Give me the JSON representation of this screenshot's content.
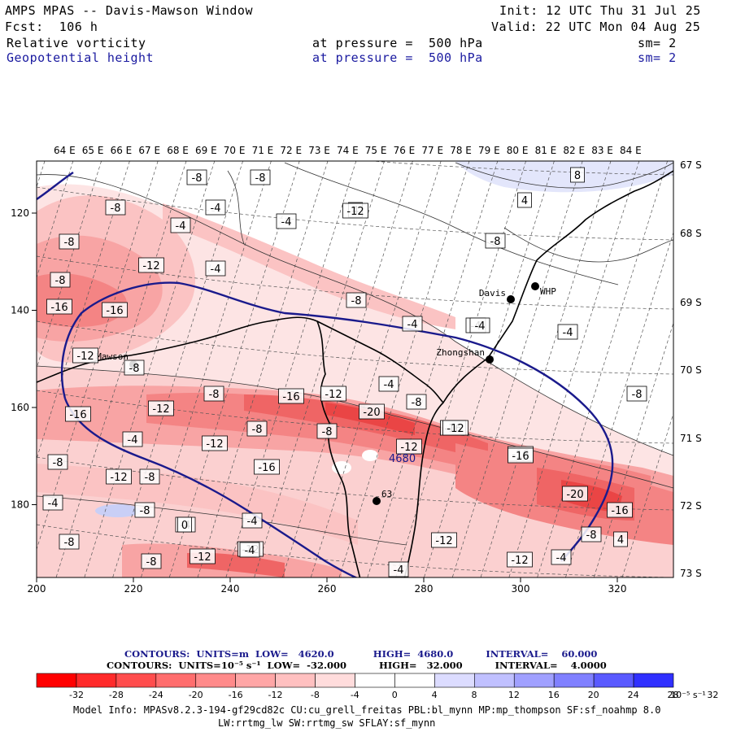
{
  "header": {
    "title": "AMPS MPAS -- Davis-Mawson Window",
    "forecast": "Fcst:  106 h",
    "init": "Init: 12 UTC Thu 31 Jul 25",
    "valid": "Valid: 22 UTC Mon 04 Aug 25",
    "field1": {
      "name": "Relative vorticity",
      "level": "at pressure =  500 hPa",
      "sm": "sm= 2"
    },
    "field2": {
      "name": "Geopotential height",
      "level": "at pressure =  500 hPa",
      "sm": "sm= 2"
    }
  },
  "map": {
    "lon_labels": [
      "64 E",
      "65 E",
      "66 E",
      "67 E",
      "68 E",
      "69 E",
      "70 E",
      "71 E",
      "72 E",
      "73 E",
      "74 E",
      "75 E",
      "76 E",
      "77 E",
      "78 E",
      "79 E",
      "80 E",
      "81 E",
      "82 E",
      "83 E",
      "84 E"
    ],
    "lat_labels": [
      "67 S",
      "68 S",
      "69 S",
      "70 S",
      "71 S",
      "72 S",
      "73 S"
    ],
    "x_ticks": [
      "200",
      "220",
      "240",
      "260",
      "280",
      "300",
      "320"
    ],
    "y_ticks": [
      "120",
      "140",
      "160",
      "180"
    ],
    "stations": [
      {
        "name": "Davis"
      },
      {
        "name": "WHP"
      },
      {
        "name": "Zhongshan"
      },
      {
        "name": "Mawson"
      },
      {
        "name": "63"
      }
    ],
    "height_contour_label": "4680",
    "vorticity_labels": [
      "-8",
      "-8",
      "-8",
      "-4",
      "-4",
      "-4",
      "-8",
      "-12",
      "-4",
      "4",
      "-8",
      "-8",
      "-16",
      "-16",
      "-12",
      "-8",
      "-4",
      "-4",
      "-4",
      "-4",
      "-16",
      "-12",
      "-8",
      "-16",
      "-12",
      "-20",
      "-8",
      "-16",
      "-12",
      "-4",
      "-8",
      "-12",
      "-16",
      "-8",
      "-12",
      "-16",
      "-8",
      "-4",
      "-8",
      "-4",
      "-8",
      "-4",
      "-12",
      "-8",
      "-12",
      "-8",
      "-12",
      "-20",
      "-12",
      "-16",
      "-4",
      "-8",
      "-8",
      "-12",
      "-8",
      "4",
      "8",
      "4",
      "-4",
      "0",
      "-4",
      "-12",
      "-16",
      "-4"
    ],
    "vorticity_colors": {
      "neg4": "#fde0e0",
      "neg8": "#fbc3c3",
      "neg12": "#f8a4a4",
      "neg16": "#f48484",
      "neg20": "#ef6565",
      "neg24": "#ea4545",
      "pos4": "#e3e6fb"
    }
  },
  "contour_info": {
    "line1": "CONTOURS:  UNITS=m  LOW=   4620.0            HIGH=  4680.0          INTERVAL=    60.000",
    "line2": "CONTOURS:  UNITS=10⁻⁵ s⁻¹  LOW=  -32.000          HIGH=   32.000          INTERVAL=    4.0000"
  },
  "colorbar": {
    "labels": [
      "-32",
      "-28",
      "-24",
      "-20",
      "-16",
      "-12",
      "-8",
      "-4",
      "0",
      "4",
      "8",
      "12",
      "16",
      "20",
      "24",
      "28",
      "32"
    ],
    "unit": "10⁻⁵ s⁻¹",
    "colors": [
      "#ff0000",
      "#ff2a2a",
      "#ff4d4d",
      "#ff6d6d",
      "#ff8a8a",
      "#ffa6a6",
      "#ffc0c0",
      "#ffdcdc",
      "#ffffff",
      "#ffffff",
      "#dcdcff",
      "#c0c0ff",
      "#a0a0ff",
      "#8080ff",
      "#5a5aff",
      "#3030ff",
      "#0000ff"
    ]
  },
  "model_info": {
    "line1": "Model Info: MPASv8.2.3-194-gf29cd82c CU:cu_grell_freitas PBL:bl_mynn MP:mp_thompson SF:sf_noahmp 8.0",
    "line2": "LW:rrtmg_lw SW:rrtmg_sw SFLAY:sf_mynn"
  }
}
